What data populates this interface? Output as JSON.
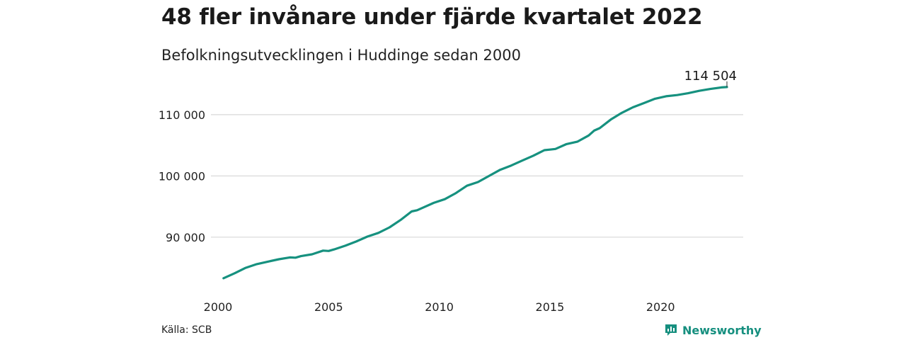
{
  "header": {
    "title": "48 fler invånare under fjärde kvartalet 2022",
    "subtitle": "Befolkningsutvecklingen i Huddinge sedan 2000"
  },
  "footer": {
    "source": "Källa: SCB",
    "brand": "Newsworthy",
    "brand_icon": "newsworthy-logo-icon"
  },
  "colors": {
    "line": "#16917f",
    "grid": "#d9d9d9",
    "brand": "#168f7f"
  },
  "chart_data": {
    "type": "line",
    "title": "48 fler invånare under fjärde kvartalet 2022",
    "subtitle": "Befolkningsutvecklingen i Huddinge sedan 2000",
    "xlabel": "",
    "ylabel": "",
    "xlim": [
      2000,
      2023
    ],
    "ylim": [
      82000,
      116000
    ],
    "grid": "horizontal",
    "x_ticks": [
      2000,
      2005,
      2010,
      2015,
      2020
    ],
    "x_tick_labels": [
      "2000",
      "2005",
      "2010",
      "2015",
      "2020"
    ],
    "y_ticks": [
      90000,
      100000,
      110000
    ],
    "y_tick_labels": [
      "90 000",
      "100 000",
      "110 000"
    ],
    "end_label": "114 504",
    "series": [
      {
        "x": [
          2000.25,
          2000.75,
          2001.25,
          2001.75,
          2002.25,
          2002.75,
          2003.25,
          2003.5,
          2003.75,
          2004.25,
          2004.75,
          2005.0,
          2005.25,
          2005.75,
          2006.25,
          2006.75,
          2007.25,
          2007.75,
          2008.25,
          2008.75,
          2009.0,
          2009.25,
          2009.75,
          2010.25,
          2010.75,
          2011.25,
          2011.75,
          2012.25,
          2012.75,
          2013.25,
          2013.75,
          2014.25,
          2014.75,
          2015.0,
          2015.25,
          2015.75,
          2016.0,
          2016.25,
          2016.75,
          2017.0,
          2017.25,
          2017.75,
          2018.25,
          2018.75,
          2019.25,
          2019.75,
          2020.25,
          2020.75,
          2021.25,
          2021.75,
          2022.25,
          2022.75,
          2023.0
        ],
        "y": [
          83300,
          84100,
          85000,
          85600,
          86000,
          86400,
          86700,
          86650,
          86900,
          87200,
          87800,
          87750,
          88000,
          88600,
          89300,
          90100,
          90700,
          91600,
          92800,
          94200,
          94400,
          94800,
          95600,
          96200,
          97200,
          98400,
          99000,
          100000,
          101000,
          101700,
          102500,
          103300,
          104200,
          104300,
          104400,
          105200,
          105400,
          105600,
          106600,
          107400,
          107800,
          109200,
          110300,
          111200,
          111900,
          112600,
          113000,
          113200,
          113500,
          113900,
          114200,
          114450,
          114504
        ]
      }
    ]
  }
}
